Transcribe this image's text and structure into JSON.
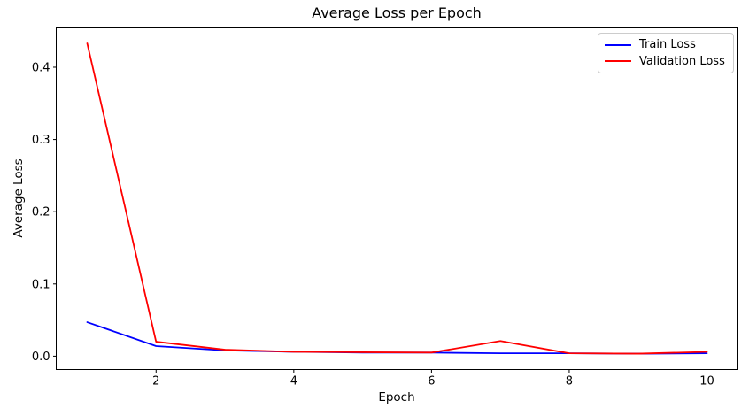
{
  "figure": {
    "background": "#ffffff",
    "spine_color": "#000000",
    "text_color": "#000000"
  },
  "legend": {
    "border_color": "#cccccc",
    "items": [
      {
        "label": "Train Loss",
        "color": "#0000ff"
      },
      {
        "label": "Validation Loss",
        "color": "#ff0000"
      }
    ]
  },
  "chart_data": {
    "type": "line",
    "title": "Average Loss per Epoch",
    "xlabel": "Epoch",
    "ylabel": "Average Loss",
    "x": [
      1,
      2,
      3,
      4,
      5,
      6,
      7,
      8,
      9,
      10
    ],
    "series": [
      {
        "name": "Train Loss",
        "color": "#0000ff",
        "values": [
          0.047,
          0.014,
          0.008,
          0.006,
          0.005,
          0.005,
          0.004,
          0.004,
          0.0035,
          0.004
        ]
      },
      {
        "name": "Validation Loss",
        "color": "#ff0000",
        "values": [
          0.433,
          0.02,
          0.009,
          0.006,
          0.0055,
          0.005,
          0.021,
          0.004,
          0.0035,
          0.006
        ]
      }
    ],
    "xlim": [
      0.55,
      10.45
    ],
    "ylim": [
      -0.0185,
      0.4545
    ],
    "xticks": [
      2,
      4,
      6,
      8,
      10
    ],
    "yticks": [
      0.0,
      0.1,
      0.2,
      0.3,
      0.4
    ],
    "grid": false,
    "legend_position": "upper right",
    "line_width": 1.8
  }
}
